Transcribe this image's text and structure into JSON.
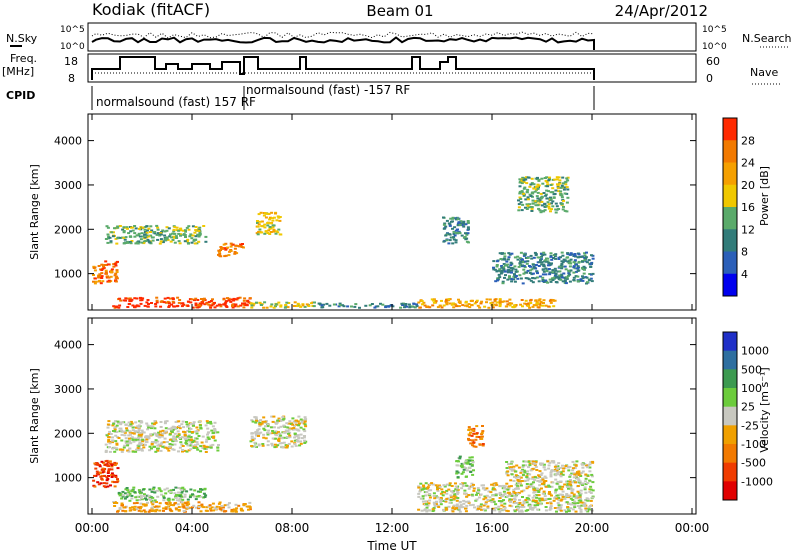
{
  "header": {
    "station": "Kodiak (fitACF)",
    "beam": "Beam 01",
    "date": "24/Apr/2012"
  },
  "panels": {
    "nsky": {
      "left_label": "N.Sky",
      "ticks": [
        "10^5",
        "10^0"
      ],
      "right_label": "N.Search"
    },
    "freq": {
      "left_label_1": "Freq.",
      "left_label_2": "[MHz]",
      "left_ticks": [
        "18",
        "8"
      ],
      "right_ticks": [
        "60",
        "0"
      ],
      "right_label": "Nave"
    },
    "cpid": {
      "label": "CPID",
      "entries": [
        "normalsound (fast) 157 RF",
        "normalsound (fast) -157 RF"
      ]
    }
  },
  "chart_data": [
    {
      "type": "heatmap",
      "title": "",
      "xlabel": "Time UT",
      "ylabel": "Slant Range [km]",
      "x_ticks": [
        "00:00",
        "04:00",
        "08:00",
        "12:00",
        "16:00",
        "20:00",
        "00:00"
      ],
      "xlim_hours": [
        0,
        24
      ],
      "y_ticks": [
        1000,
        2000,
        3000,
        4000
      ],
      "ylim_km": [
        180,
        4600
      ],
      "colorbar": {
        "label": "Power [dB]",
        "ticks": [
          "28",
          "24",
          "20",
          "16",
          "12",
          "8",
          "4"
        ],
        "range": [
          0,
          30
        ],
        "colors": [
          "#0000ee",
          "#2b5fb8",
          "#327c7a",
          "#5aaa6a",
          "#f0c800",
          "#f5a000",
          "#f27a00",
          "#ff2a00"
        ]
      },
      "blobs": [
        {
          "t0": 0.0,
          "t1": 1.0,
          "r0": 800,
          "r1": 1300,
          "level": 6
        },
        {
          "t0": 0.8,
          "t1": 6.3,
          "r0": 250,
          "r1": 480,
          "level": 7
        },
        {
          "t0": 6.3,
          "t1": 9.0,
          "r0": 250,
          "r1": 380,
          "level": 4
        },
        {
          "t0": 9.0,
          "t1": 13.0,
          "r0": 250,
          "r1": 350,
          "level": 2
        },
        {
          "t0": 13.0,
          "t1": 18.5,
          "r0": 250,
          "r1": 450,
          "level": 5
        },
        {
          "t0": 16.0,
          "t1": 20.0,
          "r0": 800,
          "r1": 1500,
          "level": 2
        },
        {
          "t0": 17.0,
          "t1": 19.0,
          "r0": 2400,
          "r1": 3200,
          "level": 3
        },
        {
          "t0": 0.5,
          "t1": 4.5,
          "r0": 1700,
          "r1": 2100,
          "level": 3
        },
        {
          "t0": 5.0,
          "t1": 6.0,
          "r0": 1400,
          "r1": 1700,
          "level": 6
        },
        {
          "t0": 6.5,
          "t1": 7.5,
          "r0": 1900,
          "r1": 2400,
          "level": 4
        },
        {
          "t0": 14.0,
          "t1": 15.0,
          "r0": 1700,
          "r1": 2300,
          "level": 2
        }
      ]
    },
    {
      "type": "heatmap",
      "title": "",
      "xlabel": "Time UT",
      "ylabel": "Slant Range [km]",
      "x_ticks": [
        "00:00",
        "04:00",
        "08:00",
        "12:00",
        "16:00",
        "20:00",
        "00:00"
      ],
      "xlim_hours": [
        0,
        24
      ],
      "y_ticks": [
        1000,
        2000,
        3000,
        4000
      ],
      "ylim_km": [
        180,
        4600
      ],
      "colorbar": {
        "label": "Velocity [m s⁻¹]",
        "ticks": [
          "1000",
          "500",
          "100",
          "25",
          "-25",
          "-100",
          "-500",
          "-1000"
        ],
        "range": [
          -1000,
          1000
        ],
        "colors": [
          "#2030c8",
          "#2e6fa0",
          "#3c9a50",
          "#6ccc3c",
          "#c8c8c0",
          "#f0a000",
          "#f27a00",
          "#f03c00",
          "#e00000"
        ]
      },
      "blobs": [
        {
          "t0": 0.0,
          "t1": 1.0,
          "r0": 800,
          "r1": 1400,
          "level": 7
        },
        {
          "t0": 0.8,
          "t1": 6.3,
          "r0": 250,
          "r1": 480,
          "level": 5
        },
        {
          "t0": 1.0,
          "t1": 4.5,
          "r0": 500,
          "r1": 800,
          "level": 3
        },
        {
          "t0": 0.5,
          "t1": 5.0,
          "r0": 1600,
          "r1": 2300,
          "level": 4
        },
        {
          "t0": 6.3,
          "t1": 8.5,
          "r0": 1700,
          "r1": 2400,
          "level": 4
        },
        {
          "t0": 13.0,
          "t1": 20.0,
          "r0": 250,
          "r1": 900,
          "level": 4
        },
        {
          "t0": 16.5,
          "t1": 20.0,
          "r0": 900,
          "r1": 1400,
          "level": 4
        },
        {
          "t0": 14.5,
          "t1": 15.2,
          "r0": 1000,
          "r1": 1500,
          "level": 3
        },
        {
          "t0": 15.0,
          "t1": 15.6,
          "r0": 1700,
          "r1": 2200,
          "level": 6
        }
      ]
    }
  ]
}
